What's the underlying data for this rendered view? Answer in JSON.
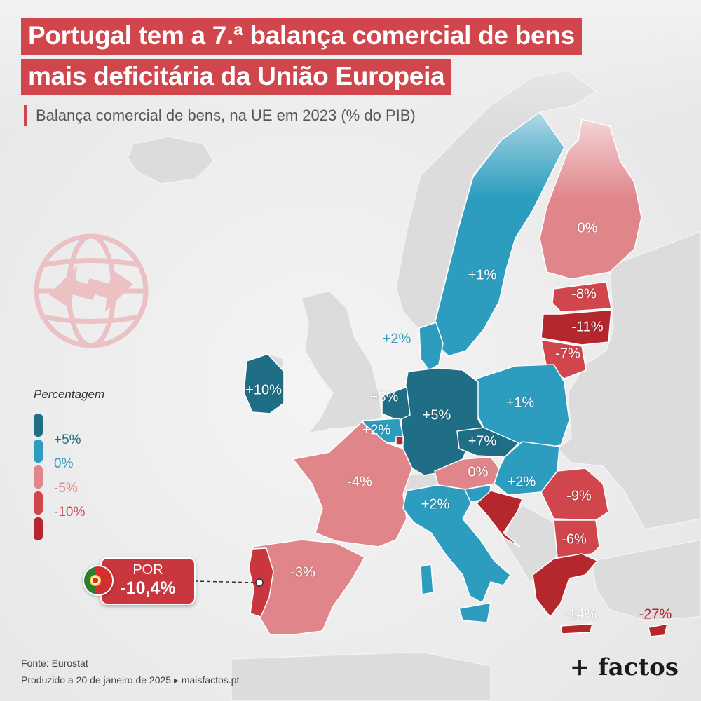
{
  "title": {
    "line1": "Portugal tem a 7.ª balança comercial de bens",
    "line2": "mais deficitária da União Europeia"
  },
  "subtitle": "Balança comercial de bens, na UE em 2023 (% do PIB)",
  "legend": {
    "title": "Percentagem",
    "items": [
      {
        "label": "+5%",
        "color": "#1f6e86"
      },
      {
        "label": "0%",
        "color": "#2d9dbf"
      },
      {
        "label": "-5%",
        "color": "#e0868a"
      },
      {
        "label": "-10%",
        "color": "#d0464c"
      },
      {
        "label": "",
        "color": "#b3272d"
      }
    ]
  },
  "countries": {
    "finland": {
      "label": "0%",
      "color": "#e0868a"
    },
    "sweden": {
      "label": "+1%",
      "color": "#2d9dbf"
    },
    "denmark": {
      "label": "+2%",
      "color": "#2d9dbf"
    },
    "estonia": {
      "label": "-8%",
      "color": "#d0464c"
    },
    "latvia": {
      "label": "-11%",
      "color": "#b3272d"
    },
    "lithuania": {
      "label": "-7%",
      "color": "#d0464c"
    },
    "ireland": {
      "label": "+10%",
      "color": "#1f6e86"
    },
    "netherlands": {
      "label": "+8%",
      "color": "#1f6e86"
    },
    "germany": {
      "label": "+5%",
      "color": "#1f6e86"
    },
    "poland": {
      "label": "+1%",
      "color": "#2d9dbf"
    },
    "belgium": {
      "label": "+2%",
      "color": "#2d9dbf"
    },
    "czechia": {
      "label": "+7%",
      "color": "#1f6e86"
    },
    "austria": {
      "label": "0%",
      "color": "#e0868a"
    },
    "slovakia_hungary": {
      "label": "+2%",
      "color": "#2d9dbf"
    },
    "france": {
      "label": "-4%",
      "color": "#e0868a"
    },
    "italy": {
      "label": "+2%",
      "color": "#2d9dbf"
    },
    "romania": {
      "label": "-9%",
      "color": "#d0464c"
    },
    "bulgaria": {
      "label": "-6%",
      "color": "#d0464c"
    },
    "spain": {
      "label": "-3%",
      "color": "#e0868a"
    },
    "portugal": {
      "label": "",
      "color": "#c9363d"
    },
    "greece": {
      "label": "-14%",
      "color": "#b3272d"
    },
    "cyprus": {
      "label": "-27%",
      "color": "#b3272d"
    },
    "croatia": {
      "label": "",
      "color": "#b3272d"
    },
    "luxembourg": {
      "label": "",
      "color": "#b3272d"
    }
  },
  "highlight": {
    "code": "POR",
    "value": "-10,4%"
  },
  "footer": {
    "source": "Fonte: Eurostat",
    "produced": "Produzido a 20 de janeiro de 2025 ▸ maisfactos.pt"
  },
  "brand": "+ factos",
  "colors": {
    "accent": "#d0464c",
    "non_eu": "#dcdcdc",
    "sea": "#ececec"
  }
}
